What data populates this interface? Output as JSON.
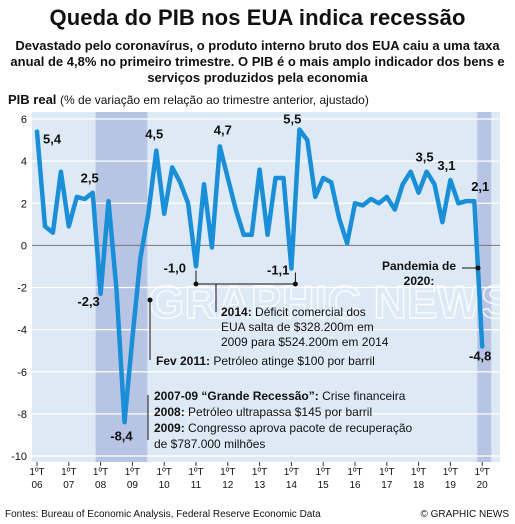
{
  "title": "Queda do PIB nos EUA indica recessão",
  "subtitle": "Devastado pelo coronavírus, o produto interno bruto dos EUA caiu a uma taxa anual de 4,8% no primeiro trimestre. O PIB é o mais amplo indicador dos bens e serviços produzidos pela economia",
  "footer": {
    "source": "Fontes: Bureau of Economic Analysis, Federal Reserve Economic Data",
    "credit": "© GRAPHIC NEWS"
  },
  "watermark": "GRAPHIC NEWS",
  "colors": {
    "line": "#1a8fd8",
    "recession_band": "#b8c4e4",
    "background": "#ddeaf6",
    "text": "#111111"
  },
  "chart_data": {
    "type": "line",
    "ylabel_bold": "PIB real",
    "ylabel_rest": "(% de variação em relação ao trimestre anterior, ajustado)",
    "ylim": [
      -10,
      6
    ],
    "yticks": [
      "6",
      "4",
      "2",
      "0",
      "-2",
      "-4",
      "-6",
      "-8",
      "-10"
    ],
    "xticks": [
      "06",
      "07",
      "08",
      "09",
      "10",
      "11",
      "12",
      "13",
      "14",
      "15",
      "16",
      "17",
      "18",
      "19",
      "20"
    ],
    "xtick_quarter": "1ºT",
    "recession_bands": [
      [
        "2008Q1",
        "2009Q2"
      ],
      [
        "2020Q1",
        "2020Q1"
      ]
    ],
    "series": [
      {
        "x": [
          "2006Q1",
          "2006Q2",
          "2006Q3",
          "2006Q4",
          "2007Q1",
          "2007Q2",
          "2007Q3",
          "2007Q4",
          "2008Q1",
          "2008Q2",
          "2008Q3",
          "2008Q4",
          "2009Q1",
          "2009Q2",
          "2009Q3",
          "2009Q4",
          "2010Q1",
          "2010Q2",
          "2010Q3",
          "2010Q4",
          "2011Q1",
          "2011Q2",
          "2011Q3",
          "2011Q4",
          "2012Q1",
          "2012Q2",
          "2012Q3",
          "2012Q4",
          "2013Q1",
          "2013Q2",
          "2013Q3",
          "2013Q4",
          "2014Q1",
          "2014Q2",
          "2014Q3",
          "2014Q4",
          "2015Q1",
          "2015Q2",
          "2015Q3",
          "2015Q4",
          "2016Q1",
          "2016Q2",
          "2016Q3",
          "2016Q4",
          "2017Q1",
          "2017Q2",
          "2017Q3",
          "2017Q4",
          "2018Q1",
          "2018Q2",
          "2018Q3",
          "2018Q4",
          "2019Q1",
          "2019Q2",
          "2019Q3",
          "2019Q4",
          "2020Q1"
        ],
        "values": [
          5.4,
          0.9,
          0.6,
          3.5,
          0.9,
          2.3,
          2.2,
          2.5,
          -2.3,
          2.1,
          -2.1,
          -8.4,
          -4.4,
          -0.6,
          1.5,
          4.5,
          1.5,
          3.7,
          3.0,
          2.0,
          -1.0,
          2.9,
          -0.1,
          4.7,
          3.2,
          1.7,
          0.5,
          0.5,
          3.6,
          0.5,
          3.2,
          3.2,
          -1.1,
          5.5,
          5.0,
          2.3,
          3.2,
          3.0,
          1.3,
          0.1,
          2.0,
          1.9,
          2.2,
          2.0,
          2.3,
          1.7,
          2.9,
          3.5,
          2.5,
          3.5,
          2.9,
          1.1,
          3.1,
          2.0,
          2.1,
          2.1,
          -4.8
        ]
      }
    ],
    "value_labels": [
      {
        "x": "2006Q1",
        "text": "5,4"
      },
      {
        "x": "2007Q4",
        "text": "2,5"
      },
      {
        "x": "2008Q1",
        "text": "-2,3"
      },
      {
        "x": "2008Q4",
        "text": "-8,4"
      },
      {
        "x": "2009Q4",
        "text": "4,5"
      },
      {
        "x": "2011Q1",
        "text": "-1,0"
      },
      {
        "x": "2011Q4",
        "text": "4,7"
      },
      {
        "x": "2014Q1",
        "text": "-1,1"
      },
      {
        "x": "2014Q2",
        "text": "5,5"
      },
      {
        "x": "2018Q2",
        "text": "3,5"
      },
      {
        "x": "2019Q1",
        "text": "3,1"
      },
      {
        "x": "2019Q4",
        "text": "2,1"
      },
      {
        "x": "2020Q1",
        "text": "-4,8"
      }
    ],
    "annotations": {
      "pandemic": "Pandemia de 2020:",
      "a2014_bold": "2014:",
      "a2014_line1": "Déficit comercial dos",
      "a2014_line2": "EUA salta de $328.200m em",
      "a2014_line3": "2009 para $524.200m em 2014",
      "a2011_bold": "Fev 2011:",
      "a2011_text": "Petróleo atinge $100 por barril",
      "a0709_bold": "2007-09 “Grande Recessão”:",
      "a0709_text": "Crise financeira",
      "a2008_bold": "2008:",
      "a2008_text": "Petróleo ultrapassa $145 por barril",
      "a2009_bold": "2009:",
      "a2009_text1": "Congresso aprova pacote de recuperação",
      "a2009_text2": "de $787.000 milhões"
    }
  }
}
